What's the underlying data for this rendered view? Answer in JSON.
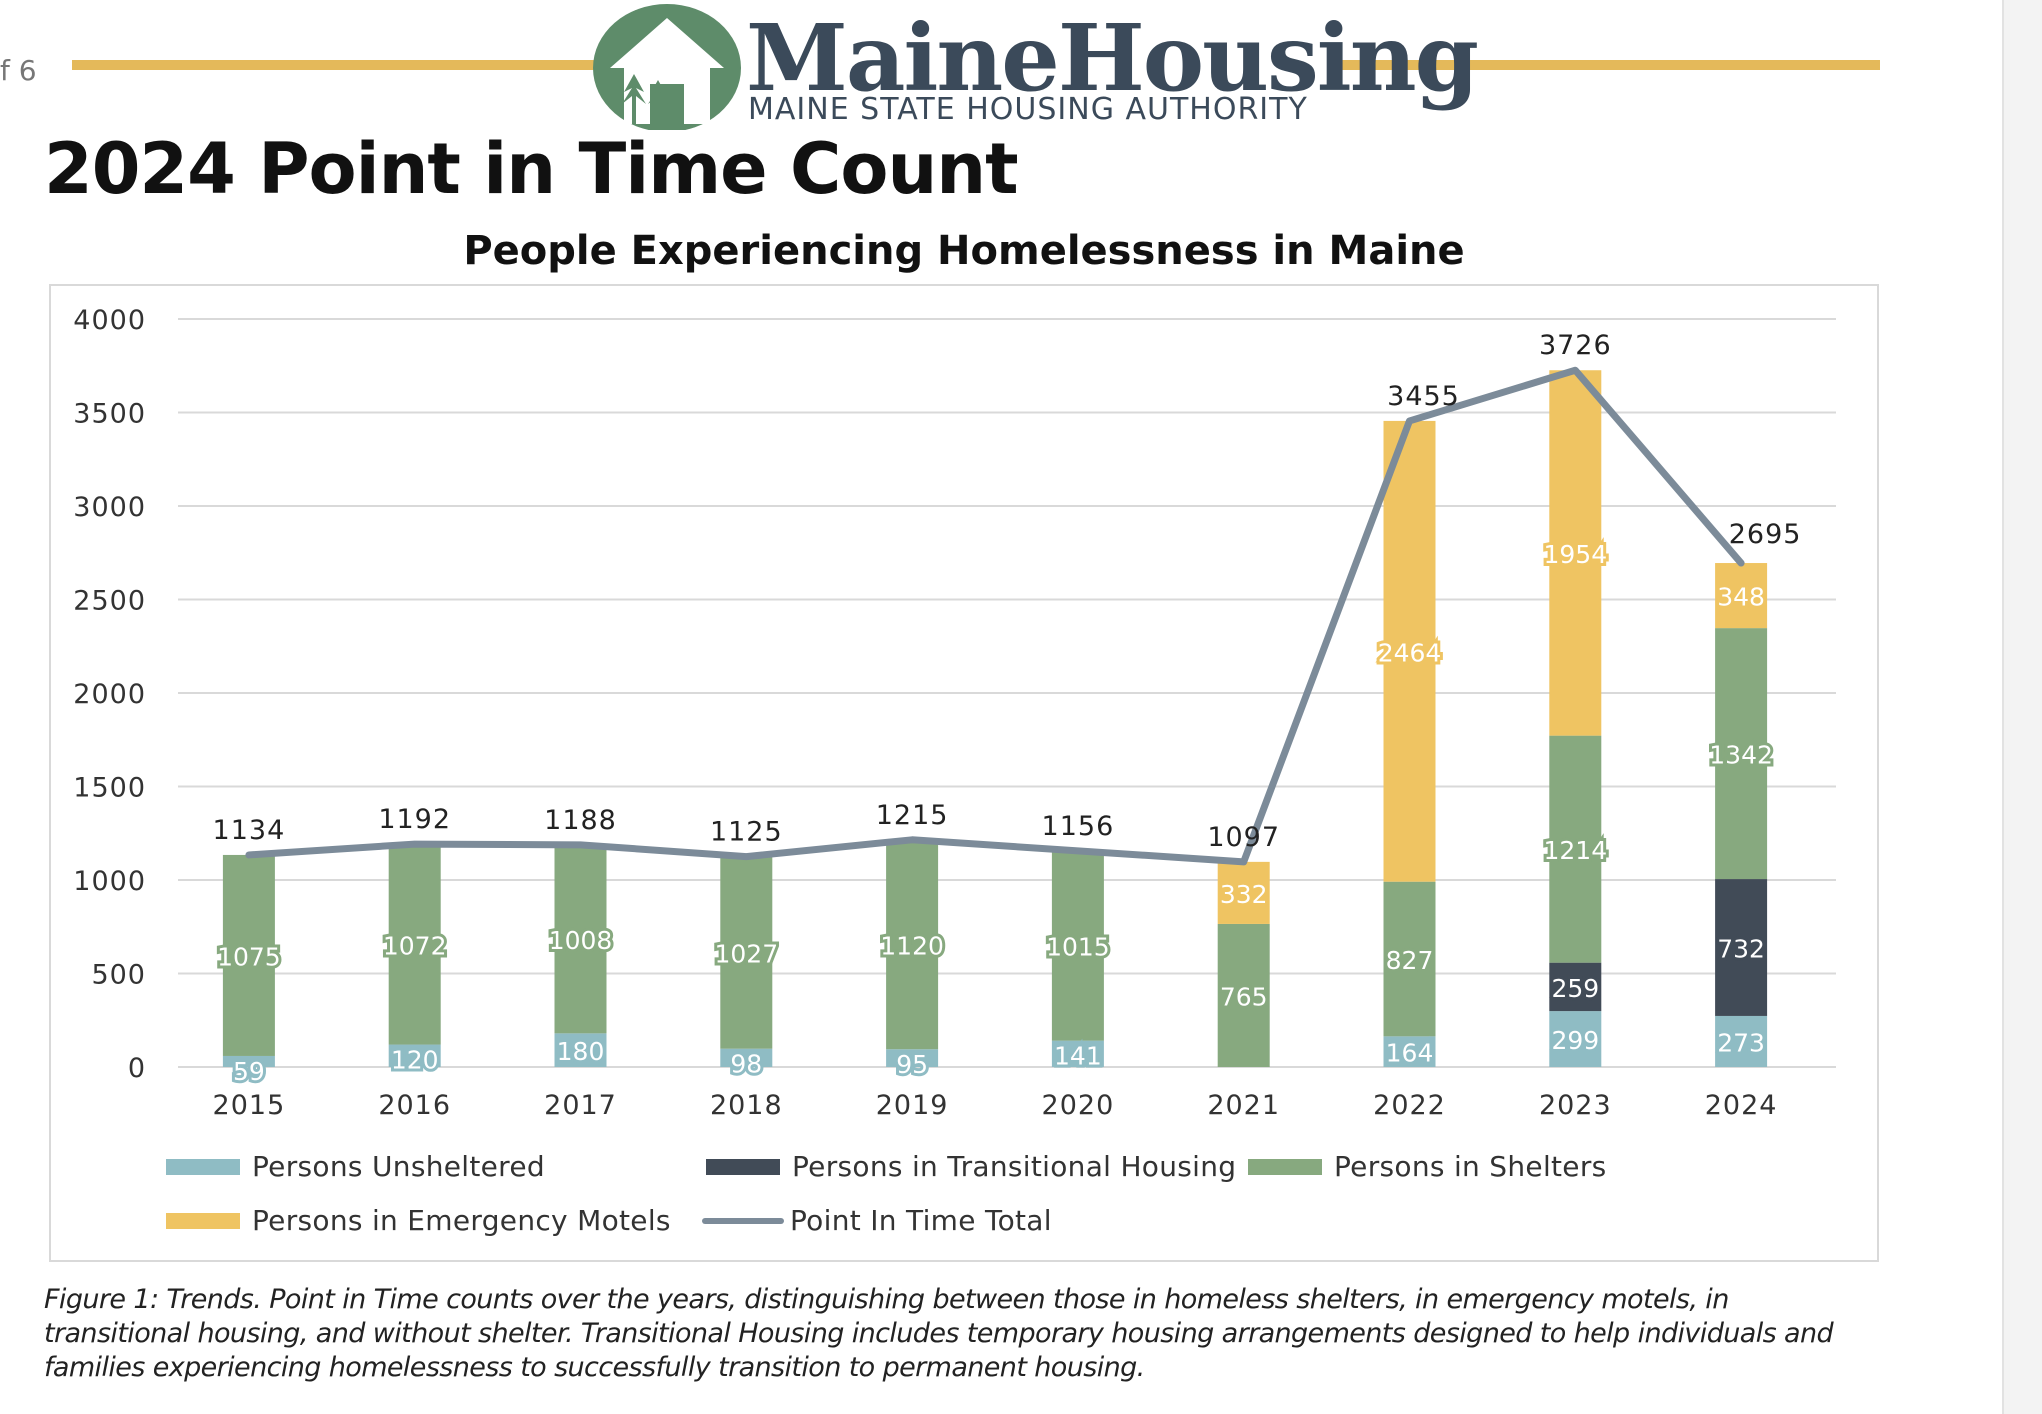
{
  "header": {
    "page_indicator": "f 6",
    "brand_name": "MaineHousing",
    "brand_subtitle": "MAINE STATE HOUSING AUTHORITY",
    "rule_color": "#e4b95a",
    "logo_icon": "house-with-trees-logo"
  },
  "page_title": "2024 Point in Time Count",
  "caption": "Figure 1: Trends. Point in Time counts over the years, distinguishing between those in homeless shelters, in emergency motels, in transitional housing, and without shelter. Transitional Housing includes temporary housing arrangements designed to help individuals and families experiencing homelessness to successfully transition to permanent housing.",
  "chart_data": {
    "type": "bar",
    "stacked": true,
    "title": "People Experiencing Homelessness in Maine",
    "xlabel": "",
    "ylabel": "",
    "ylim": [
      0,
      4000
    ],
    "yticks": [
      0,
      500,
      1000,
      1500,
      2000,
      2500,
      3000,
      3500,
      4000
    ],
    "grid": true,
    "legend_position": "bottom",
    "categories": [
      "2015",
      "2016",
      "2017",
      "2018",
      "2019",
      "2020",
      "2021",
      "2022",
      "2023",
      "2024"
    ],
    "series": [
      {
        "name": "Persons Unsheltered",
        "color": "#8fbcc4",
        "values": [
          59,
          120,
          180,
          98,
          95,
          141,
          0,
          164,
          299,
          273
        ],
        "labels": [
          "59",
          "120",
          "180",
          "98",
          "95",
          "141",
          "",
          "164",
          "299",
          "273"
        ]
      },
      {
        "name": "Persons in Transitional Housing",
        "color": "#414b57",
        "values": [
          0,
          0,
          0,
          0,
          0,
          0,
          0,
          0,
          259,
          732
        ],
        "labels": [
          "",
          "",
          "",
          "",
          "",
          "",
          "",
          "",
          "259",
          "732"
        ]
      },
      {
        "name": "Persons in Shelters",
        "color": "#87a97f",
        "values": [
          1075,
          1072,
          1008,
          1027,
          1120,
          1015,
          765,
          827,
          1214,
          1342
        ],
        "labels": [
          "1075",
          "1072",
          "1008",
          "1027",
          "1120",
          "1015",
          "765",
          "827",
          "1214",
          "1342"
        ]
      },
      {
        "name": "Persons in Emergency Motels",
        "color": "#efc462",
        "values": [
          0,
          0,
          0,
          0,
          0,
          0,
          332,
          2464,
          1954,
          348
        ],
        "labels": [
          "",
          "",
          "",
          "",
          "",
          "",
          "332",
          "2464",
          "1954",
          "348"
        ]
      }
    ],
    "total_line": {
      "name": "Point In Time Total",
      "color": "#7c8b99",
      "values": [
        1134,
        1192,
        1188,
        1125,
        1215,
        1156,
        1097,
        3455,
        3726,
        2695
      ]
    }
  }
}
